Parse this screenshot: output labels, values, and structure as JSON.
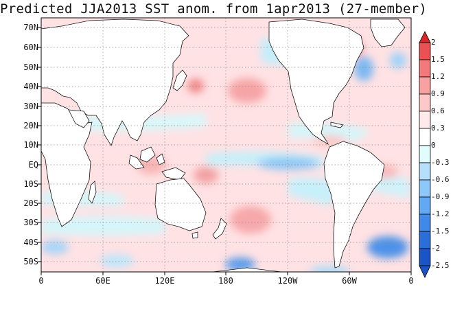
{
  "title": "Predicted JJA2013 SST anom. from 1apr2013 (27-member)",
  "map": {
    "lat_labels": [
      "70N",
      "60N",
      "50N",
      "40N",
      "30N",
      "20N",
      "10N",
      "EQ",
      "10S",
      "20S",
      "30S",
      "40S",
      "50S"
    ],
    "lon_labels": [
      "0",
      "60E",
      "120E",
      "180",
      "120W",
      "60W",
      "0"
    ],
    "gridlines": "dotted"
  },
  "colorbar": {
    "labels": [
      "2",
      "1.5",
      "1.2",
      "0.9",
      "0.6",
      "0.3",
      "0",
      "-0.3",
      "-0.6",
      "-0.9",
      "-1.2",
      "-1.5",
      "-2",
      "-2.5"
    ],
    "colors": [
      "#d8262a",
      "#eb5052",
      "#f4797a",
      "#f9a1a1",
      "#fcc8c8",
      "#feeaea",
      "#e0fcfc",
      "#b4e0fc",
      "#8dc8fa",
      "#62a8f2",
      "#3f8ae8",
      "#2a6edc",
      "#1a54c6"
    ]
  }
}
